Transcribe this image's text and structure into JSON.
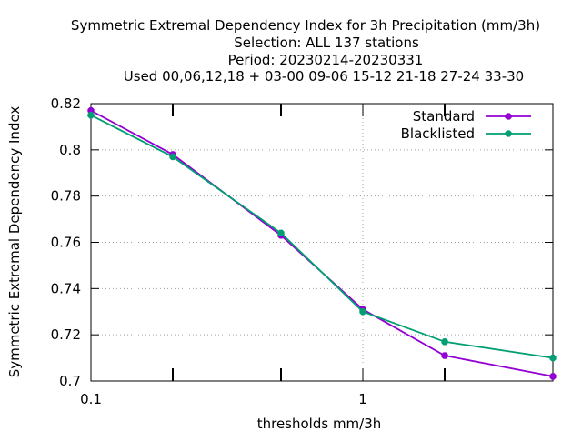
{
  "chart_data": {
    "type": "line",
    "title_lines": [
      "Symmetric Extremal Dependency Index  for 3h Precipitation (mm/3h)",
      "Selection: ALL    137 stations",
      "Period: 20230214-20230331",
      "Used  00,06,12,18  + 03-00 09-06 15-12 21-18 27-24 33-30"
    ],
    "xlabel": "thresholds mm/3h",
    "ylabel": "Symmetric Extremal Dependency Index",
    "x_scale": "log",
    "xlim": [
      0.1,
      5
    ],
    "ylim": [
      0.7,
      0.82
    ],
    "x_tick_labels": [
      {
        "value": 0.1,
        "label": "0.1"
      },
      {
        "value": 1,
        "label": "1"
      }
    ],
    "x_minor_ticks": [
      0.2,
      0.5,
      2
    ],
    "y_ticks": [
      {
        "value": 0.7,
        "label": "0.7"
      },
      {
        "value": 0.72,
        "label": "0.72"
      },
      {
        "value": 0.74,
        "label": "0.74"
      },
      {
        "value": 0.76,
        "label": "0.76"
      },
      {
        "value": 0.78,
        "label": "0.78"
      },
      {
        "value": 0.8,
        "label": "0.8"
      },
      {
        "value": 0.82,
        "label": "0.82"
      }
    ],
    "grid": true,
    "legend_position": "top-right",
    "series": [
      {
        "name": "Standard",
        "color": "#9400d3",
        "x": [
          0.1,
          0.2,
          0.5,
          1,
          2,
          5
        ],
        "y": [
          0.817,
          0.798,
          0.763,
          0.731,
          0.711,
          0.702
        ]
      },
      {
        "name": "Blacklisted",
        "color": "#009e73",
        "x": [
          0.1,
          0.2,
          0.5,
          1,
          2,
          5
        ],
        "y": [
          0.815,
          0.797,
          0.764,
          0.73,
          0.717,
          0.71
        ]
      }
    ]
  }
}
